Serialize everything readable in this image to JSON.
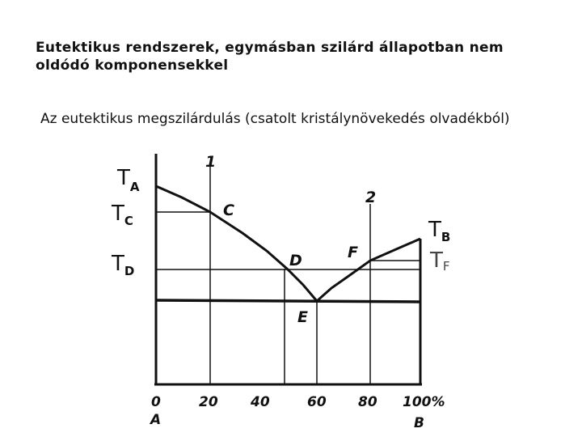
{
  "header": {
    "title_lines": [
      "Eutektikus rendszerek, egymásban szilárd állapotban nem",
      "oldódó komponensekkel"
    ],
    "subtitle": "Az eutektikus megszilárdulás (csatolt kristálynövekedés olvadékból)"
  },
  "diagram": {
    "temperature_labels": [
      {
        "symbol": "T",
        "subscript": "A"
      },
      {
        "symbol": "T",
        "subscript": "C"
      },
      {
        "symbol": "T",
        "subscript": "D"
      },
      {
        "symbol": "T",
        "subscript": "B"
      },
      {
        "symbol": "T",
        "subscript": "F"
      }
    ],
    "point_labels": [
      "1",
      "2",
      "C",
      "D",
      "E",
      "F"
    ],
    "axis_labels": [
      "0",
      "20",
      "40",
      "60",
      "80",
      "100%"
    ],
    "components": [
      "A",
      "B"
    ]
  }
}
